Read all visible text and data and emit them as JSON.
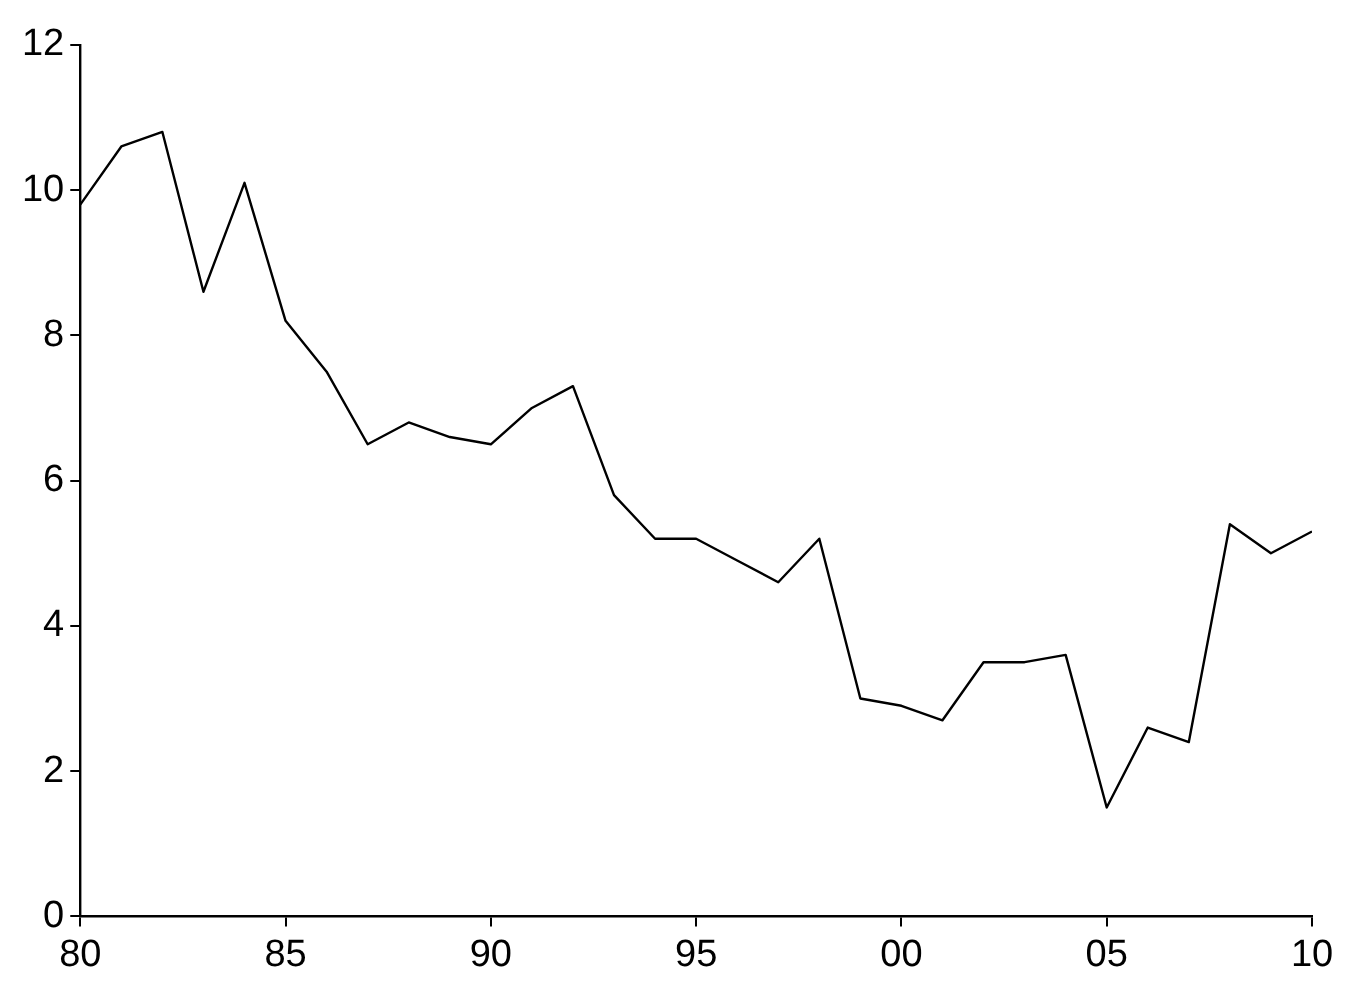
{
  "chart_data": {
    "type": "line",
    "x": [
      1980,
      1981,
      1982,
      1983,
      1984,
      1985,
      1986,
      1987,
      1988,
      1989,
      1990,
      1991,
      1992,
      1993,
      1994,
      1995,
      1996,
      1997,
      1998,
      1999,
      2000,
      2001,
      2002,
      2003,
      2004,
      2005,
      2006,
      2007,
      2008,
      2009,
      2010
    ],
    "series": [
      {
        "color": "#000000",
        "values": [
          9.8,
          10.6,
          10.8,
          8.6,
          10.1,
          8.2,
          7.5,
          6.5,
          6.8,
          6.6,
          6.5,
          7.0,
          7.3,
          5.8,
          5.2,
          5.2,
          4.9,
          4.6,
          5.2,
          3.0,
          2.9,
          2.7,
          3.5,
          3.5,
          3.6,
          1.5,
          2.6,
          2.4,
          5.4,
          5.0,
          5.3
        ]
      }
    ],
    "xlim": [
      1980,
      2010
    ],
    "xticks": [
      {
        "value": 1980,
        "label": "80"
      },
      {
        "value": 1985,
        "label": "85"
      },
      {
        "value": 1990,
        "label": "90"
      },
      {
        "value": 1995,
        "label": "95"
      },
      {
        "value": 2000,
        "label": "00"
      },
      {
        "value": 2005,
        "label": "05"
      },
      {
        "value": 2010,
        "label": "10"
      }
    ],
    "ylim": [
      0,
      12
    ],
    "yticks": [
      0,
      2,
      4,
      6,
      8,
      10,
      12
    ],
    "grid": false,
    "legend": false,
    "marker": "none",
    "line_style": "solid"
  }
}
